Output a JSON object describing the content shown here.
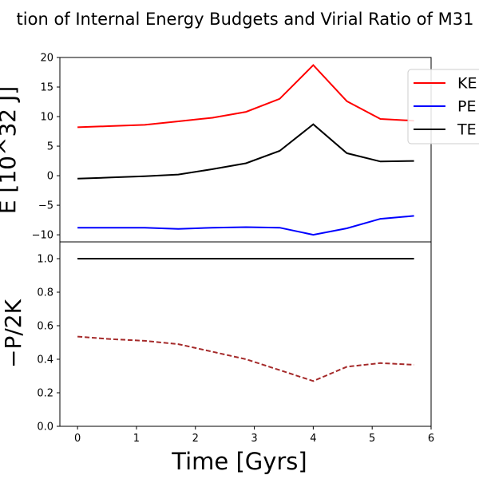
{
  "chart_data": [
    {
      "type": "line",
      "title": "tion of Internal Energy Budgets and Virial Ratio of M31",
      "xlabel": "",
      "ylabel": "E [10^32 J]",
      "xlim": [
        -0.3,
        6
      ],
      "ylim": [
        -11.2,
        20.0
      ],
      "yticks": [
        -10,
        -5,
        0,
        5,
        10,
        15,
        20
      ],
      "x": [
        0.0,
        0.57,
        1.14,
        1.71,
        2.29,
        2.86,
        3.43,
        4.0,
        4.57,
        5.14,
        5.71
      ],
      "series": [
        {
          "name": "KE",
          "color": "#ff0000",
          "dash": "solid",
          "values": [
            8.2,
            8.4,
            8.6,
            9.2,
            9.8,
            10.8,
            13.0,
            18.7,
            12.6,
            9.6,
            9.3
          ]
        },
        {
          "name": "PE",
          "color": "#0000ff",
          "dash": "solid",
          "values": [
            -8.8,
            -8.8,
            -8.8,
            -9.0,
            -8.8,
            -8.7,
            -8.8,
            -10.0,
            -8.9,
            -7.3,
            -6.8
          ]
        },
        {
          "name": "TE",
          "color": "#000000",
          "dash": "solid",
          "values": [
            -0.5,
            -0.3,
            -0.1,
            0.2,
            1.1,
            2.1,
            4.2,
            8.7,
            3.8,
            2.4,
            2.5
          ]
        }
      ],
      "legend": {
        "placement": "top-right, outside",
        "entries": [
          "KE",
          "PE",
          "TE"
        ]
      },
      "grid": false
    },
    {
      "type": "line",
      "xlabel": "Time [Gyrs]",
      "ylabel": "−P/2K",
      "xlim": [
        -0.3,
        6
      ],
      "ylim": [
        0.0,
        1.1
      ],
      "yticks": [
        "0.0",
        "0.2",
        "0.4",
        "0.6",
        "0.8",
        "1.0"
      ],
      "xticks": [
        "0",
        "1",
        "2",
        "3",
        "4",
        "5",
        "6"
      ],
      "x": [
        0.0,
        0.57,
        1.14,
        1.71,
        2.29,
        2.86,
        3.43,
        4.0,
        4.57,
        5.14,
        5.71
      ],
      "series": [
        {
          "color": "#000000",
          "dash": "solid",
          "values": [
            1.0,
            1.0,
            1.0,
            1.0,
            1.0,
            1.0,
            1.0,
            1.0,
            1.0,
            1.0,
            1.0
          ]
        },
        {
          "color": "#a52a2a",
          "dash": "dashed",
          "values": [
            0.535,
            0.52,
            0.51,
            0.49,
            0.445,
            0.4,
            0.335,
            0.27,
            0.355,
            0.377,
            0.367
          ]
        }
      ],
      "grid": false
    }
  ]
}
